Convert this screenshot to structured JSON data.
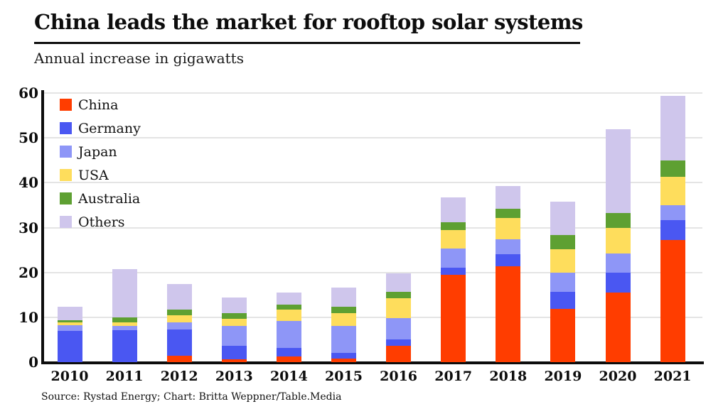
{
  "header": {
    "title": "China leads the market for rooftop solar systems",
    "subtitle": "Annual increase in gigawatts"
  },
  "footer": {
    "source": "Source: Rystad Energy; Chart: Britta Weppner/Table.Media"
  },
  "colors": {
    "axis": "#0d0d0d",
    "grid": "#e4e4e4",
    "background": "#ffffff"
  },
  "chart_data": {
    "type": "bar",
    "stacked": true,
    "title": "China leads the market for rooftop solar systems",
    "subtitle": "Annual increase in gigawatts",
    "xlabel": "",
    "ylabel": "Annual increase in gigawatts",
    "ylim": [
      0,
      60
    ],
    "yticks": [
      0,
      10,
      20,
      30,
      40,
      50,
      60
    ],
    "grid": true,
    "legend_position": "top-left-inside",
    "categories": [
      "2010",
      "2011",
      "2012",
      "2013",
      "2014",
      "2015",
      "2016",
      "2017",
      "2018",
      "2019",
      "2020",
      "2021"
    ],
    "series": [
      {
        "name": "China",
        "color": "#ff3d00",
        "values": [
          0,
          0,
          1.5,
          0.7,
          1.2,
          0.8,
          3.7,
          19.5,
          21.3,
          11.9,
          15.5,
          27.3
        ]
      },
      {
        "name": "Germany",
        "color": "#4a57f2",
        "values": [
          7.0,
          7.1,
          5.8,
          2.9,
          2.0,
          1.3,
          1.3,
          1.6,
          2.8,
          3.8,
          4.5,
          4.4
        ]
      },
      {
        "name": "Japan",
        "color": "#8e96f7",
        "values": [
          1.2,
          0.9,
          1.6,
          4.5,
          6.0,
          6.0,
          4.9,
          4.3,
          3.3,
          4.3,
          4.2,
          3.3
        ]
      },
      {
        "name": "USA",
        "color": "#fedd5c",
        "values": [
          0.7,
          0.9,
          1.6,
          1.5,
          2.5,
          2.9,
          4.4,
          4.1,
          4.7,
          5.2,
          5.8,
          6.4
        ]
      },
      {
        "name": "Australia",
        "color": "#5ea032",
        "values": [
          0.5,
          1.1,
          1.3,
          1.4,
          1.2,
          1.4,
          1.4,
          1.7,
          2.1,
          3.1,
          3.2,
          3.5
        ]
      },
      {
        "name": "Others",
        "color": "#cfc6ec",
        "values": [
          2.9,
          10.8,
          5.7,
          3.4,
          2.6,
          4.3,
          4.1,
          5.6,
          5.1,
          7.5,
          18.7,
          14.4
        ]
      }
    ],
    "totals": [
      12.3,
      20.8,
      17.5,
      14.4,
      15.5,
      16.7,
      19.8,
      36.8,
      39.3,
      35.8,
      51.9,
      59.3
    ]
  }
}
